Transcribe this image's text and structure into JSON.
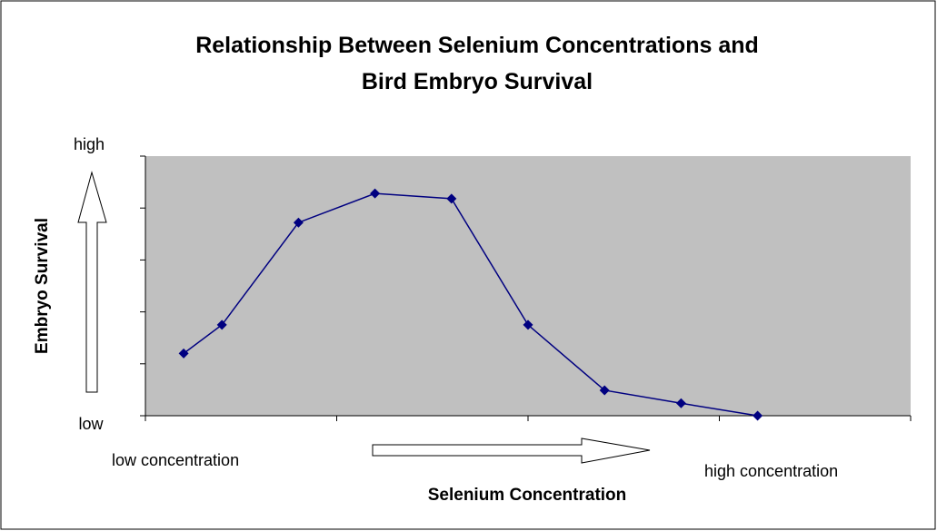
{
  "chart_data": {
    "type": "line",
    "title": "Relationship Between Selenium Concentrations and Bird Embryo Survival",
    "x_label": "Selenium Concentration",
    "y_label": "Embryo Survival",
    "y_low_label": "low",
    "y_high_label": "high",
    "x_low_label": "low concentration",
    "x_high_label": "high concentration",
    "x": [
      1,
      2,
      4,
      6,
      8,
      10,
      12,
      14,
      16
    ],
    "values": [
      1.2,
      1.75,
      3.72,
      4.28,
      4.18,
      1.75,
      0.49,
      0.24,
      0
    ],
    "color": "#000080",
    "plot_background": "#c0c0c0",
    "xlim": [
      0,
      20
    ],
    "xticks": [
      0,
      5,
      10,
      15,
      20
    ],
    "ylim": [
      0,
      5
    ],
    "yticks": [
      0,
      1,
      2,
      3,
      4,
      5
    ],
    "grid": false
  }
}
